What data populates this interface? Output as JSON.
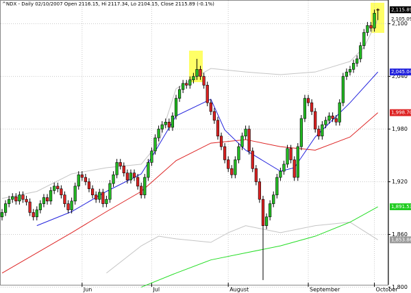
{
  "chart_data": {
    "type": "candlestick",
    "title": "^NDX - Daily 02/10/2007 Open 2116.15, Hi 2117.34, Lo 2104.15, Close 2115.89 (-0.1%)",
    "categories": [
      null,
      null,
      null,
      null,
      null,
      null,
      null,
      null,
      null,
      null,
      null,
      null,
      null,
      null,
      null,
      null,
      null,
      null,
      null,
      null,
      null,
      null,
      null,
      "Jun",
      null,
      null,
      null,
      null,
      null,
      null,
      null,
      null,
      null,
      null,
      null,
      null,
      null,
      null,
      null,
      null,
      null,
      null,
      null,
      "Jul",
      null,
      null,
      null,
      null,
      null,
      null,
      null,
      null,
      null,
      null,
      null,
      null,
      null,
      null,
      null,
      null,
      null,
      null,
      null,
      null,
      null,
      "August",
      null,
      null,
      null,
      null,
      null,
      null,
      null,
      null,
      null,
      null,
      null,
      null,
      null,
      null,
      null,
      null,
      null,
      null,
      null,
      null,
      null,
      null,
      "September",
      null,
      null,
      null,
      null,
      null,
      null,
      null,
      null,
      null,
      null,
      null,
      null,
      null,
      null,
      null,
      null,
      null,
      null,
      "October",
      null
    ],
    "open": [
      1880,
      1885,
      1895,
      1900,
      1903,
      1898,
      1905,
      1900,
      1897,
      1885,
      1880,
      1888,
      1895,
      1902,
      1898,
      1910,
      1915,
      1912,
      1905,
      1895,
      1888,
      1898,
      1915,
      1928,
      1925,
      1920,
      1912,
      1905,
      1900,
      1908,
      1895,
      1900,
      1918,
      1928,
      1942,
      1938,
      1930,
      1922,
      1930,
      1925,
      1915,
      1905,
      1925,
      1942,
      1955,
      1970,
      1980,
      1985,
      1988,
      1982,
      1995,
      2015,
      2025,
      2032,
      2030,
      2036,
      2040,
      2048,
      2040,
      2030,
      2010,
      2000,
      1990,
      1972,
      1960,
      1945,
      1935,
      1928,
      1945,
      1960,
      1972,
      1980,
      1955,
      1935,
      1920,
      1900,
      1870,
      1880,
      1895,
      1905,
      1925,
      1932,
      1940,
      1958,
      1945,
      1925,
      1960,
      1992,
      2015,
      2010,
      2000,
      1980,
      1972,
      1985,
      1990,
      1995,
      1992,
      1988,
      2010,
      2040,
      2045,
      2048,
      2055,
      2060,
      2075,
      2090,
      2098,
      2095,
      2116.15
    ],
    "high": [
      1889,
      1899,
      1904,
      1907,
      1907,
      1909,
      1909,
      1904,
      1901,
      1889,
      1892,
      1899,
      1906,
      1906,
      1914,
      1919,
      1919,
      1916,
      1909,
      1899,
      1902,
      1919,
      1932,
      1932,
      1929,
      1924,
      1916,
      1909,
      1912,
      1912,
      1904,
      1922,
      1932,
      1946,
      1946,
      1942,
      1934,
      1934,
      1934,
      1929,
      1919,
      1929,
      1946,
      1959,
      1974,
      1984,
      1989,
      1992,
      1992,
      1999,
      2019,
      2029,
      2036,
      2036,
      2040,
      2044,
      2060,
      2052,
      2044,
      2034,
      2014,
      2004,
      1994,
      1976,
      1964,
      1949,
      1939,
      1949,
      1964,
      1976,
      1984,
      1984,
      1959,
      1939,
      1924,
      1904,
      1884,
      1899,
      1909,
      1929,
      1936,
      1944,
      1962,
      1962,
      1949,
      1964,
      1996,
      2019,
      2019,
      2014,
      2004,
      1984,
      1989,
      1994,
      1999,
      1999,
      1996,
      2014,
      2044,
      2049,
      2052,
      2059,
      2064,
      2079,
      2094,
      2102,
      2102,
      2116,
      2117.34
    ],
    "low": [
      1876,
      1881,
      1891,
      1896,
      1894,
      1894,
      1896,
      1893,
      1881,
      1876,
      1876,
      1884,
      1891,
      1894,
      1894,
      1906,
      1908,
      1901,
      1891,
      1884,
      1884,
      1894,
      1911,
      1921,
      1916,
      1908,
      1901,
      1896,
      1896,
      1891,
      1891,
      1896,
      1914,
      1924,
      1934,
      1926,
      1918,
      1918,
      1921,
      1911,
      1901,
      1901,
      1921,
      1938,
      1951,
      1966,
      1976,
      1981,
      1978,
      1978,
      1991,
      2011,
      2021,
      2026,
      2026,
      2032,
      2036,
      2036,
      2026,
      2006,
      1996,
      1986,
      1968,
      1956,
      1941,
      1931,
      1924,
      1924,
      1941,
      1956,
      1968,
      1951,
      1931,
      1916,
      1896,
      1808,
      1866,
      1876,
      1891,
      1901,
      1921,
      1928,
      1936,
      1941,
      1921,
      1921,
      1956,
      1988,
      2006,
      1996,
      1976,
      1968,
      1968,
      1981,
      1986,
      1988,
      1984,
      1984,
      2006,
      2036,
      2041,
      2044,
      2051,
      2056,
      2071,
      2086,
      2091,
      2091,
      2104.15
    ],
    "close": [
      1885,
      1895,
      1900,
      1903,
      1898,
      1905,
      1900,
      1897,
      1885,
      1880,
      1888,
      1895,
      1902,
      1898,
      1910,
      1915,
      1912,
      1905,
      1895,
      1888,
      1898,
      1915,
      1928,
      1925,
      1920,
      1912,
      1905,
      1900,
      1908,
      1895,
      1900,
      1918,
      1928,
      1942,
      1938,
      1930,
      1922,
      1930,
      1925,
      1915,
      1905,
      1925,
      1942,
      1955,
      1970,
      1980,
      1985,
      1988,
      1982,
      1995,
      2015,
      2025,
      2032,
      2030,
      2036,
      2040,
      2048,
      2040,
      2030,
      2010,
      2000,
      1990,
      1972,
      1960,
      1945,
      1935,
      1928,
      1945,
      1960,
      1972,
      1980,
      1955,
      1935,
      1920,
      1900,
      1870,
      1880,
      1895,
      1905,
      1925,
      1932,
      1940,
      1958,
      1945,
      1925,
      1960,
      1992,
      2015,
      2010,
      2000,
      1980,
      1972,
      1985,
      1990,
      1995,
      1992,
      1988,
      2010,
      2040,
      2045,
      2048,
      2055,
      2060,
      2075,
      2090,
      2098,
      2095,
      2112,
      2115.89
    ],
    "last_close_label": "2,115.89",
    "up_color": "#22bb22",
    "down_color": "#dd2222",
    "series": [
      {
        "color": "#c4c4c4",
        "x": [
          0,
          10,
          20,
          30,
          40,
          45,
          50,
          60,
          70,
          80,
          90,
          100,
          104,
          108
        ],
        "values": [
          1901,
          1909,
          1929,
          1936,
          1940,
          1964,
          2026,
          2049,
          2045,
          2042,
          2045,
          2057,
          2073,
          2105.09
        ],
        "last_label": "2,105.09",
        "label_box": false
      },
      {
        "color": "#c4c4c4",
        "x": [
          30,
          40,
          45,
          50,
          60,
          65,
          70,
          80,
          90,
          100,
          108
        ],
        "values": [
          1816,
          1847,
          1858,
          1855,
          1851,
          1862,
          1870,
          1862,
          1870,
          1874,
          1853.86
        ],
        "last_label": "1,853.86",
        "label_box": true,
        "label_color": "#9a9a9a"
      },
      {
        "color": "#22dd22",
        "x": [
          40,
          50,
          60,
          70,
          80,
          90,
          100,
          108
        ],
        "values": [
          1800,
          1816,
          1831,
          1839,
          1847,
          1858,
          1874,
          1891.53
        ],
        "last_label": "1,891.53",
        "label_box": true,
        "label_color": "#22cc22"
      },
      {
        "color": "#dd2222",
        "x": [
          0,
          10,
          20,
          30,
          40,
          50,
          60,
          70,
          80,
          90,
          100,
          108
        ],
        "values": [
          1816,
          1839,
          1862,
          1886,
          1909,
          1944,
          1964,
          1968,
          1960,
          1956,
          1971,
          1998.7
        ],
        "last_label": "1,998.70",
        "label_box": true,
        "label_color": "#dd2222"
      },
      {
        "color": "#2222dd",
        "x": [
          10,
          20,
          30,
          40,
          43,
          50,
          60,
          64,
          70,
          80,
          84,
          90,
          100,
          108
        ],
        "values": [
          1870,
          1886,
          1909,
          1929,
          1948,
          1995,
          2014,
          1979,
          1956,
          1932,
          1936,
          1971,
          2010,
          2045.04
        ],
        "last_label": "2,045.04",
        "label_box": true,
        "label_color": "#2222dd"
      }
    ],
    "ylim": [
      1798,
      2127
    ],
    "yticks": [
      {
        "value": 1800,
        "label": "1,800"
      },
      {
        "value": 1860,
        "label": "1,860"
      },
      {
        "value": 1920,
        "label": "1,920"
      },
      {
        "value": 1980,
        "label": "1,980"
      },
      {
        "value": 2040,
        "label": "2,040"
      },
      {
        "value": 2100,
        "label": "2,100"
      }
    ],
    "grid": true
  }
}
